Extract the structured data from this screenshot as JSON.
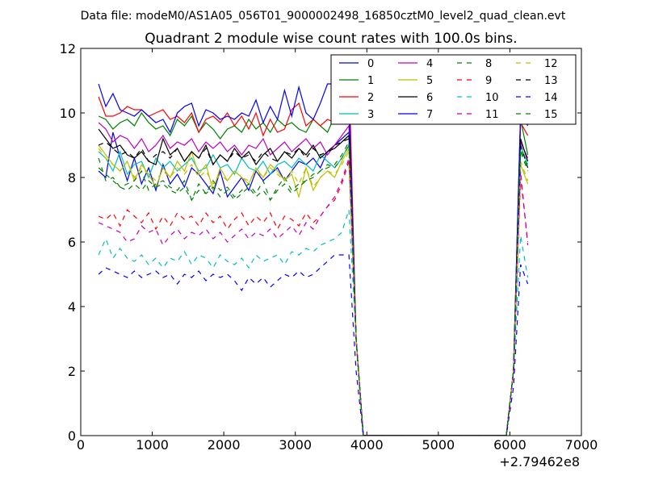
{
  "chart_data": {
    "type": "line",
    "suptitle": "Data file: modeM0/AS1A05_056T01_9000002498_16850cztM0_level2_quad_clean.evt",
    "title": "Quadrant 2 module wise count rates with 100.0s bins.",
    "xlabel": "",
    "ylabel": "",
    "x_offset_label": "+2.79462e8",
    "xlim": [
      0,
      7000
    ],
    "ylim": [
      0,
      12
    ],
    "xticks": [
      0,
      1000,
      2000,
      3000,
      4000,
      5000,
      6000,
      7000
    ],
    "yticks": [
      0,
      2,
      4,
      6,
      8,
      10,
      12
    ],
    "grid": false,
    "legend_position": "top-right",
    "x": [
      250,
      350,
      450,
      550,
      650,
      750,
      850,
      950,
      1050,
      1150,
      1250,
      1350,
      1450,
      1550,
      1650,
      1750,
      1850,
      1950,
      2050,
      2150,
      2250,
      2350,
      2450,
      2550,
      2650,
      2750,
      2850,
      2950,
      3050,
      3150,
      3250,
      3350,
      3450,
      3550,
      3650,
      3750,
      3850,
      3950,
      4050,
      4150,
      4250,
      4350,
      4450,
      4550,
      4650,
      4750,
      4850,
      4950,
      5050,
      5150,
      5250,
      5350,
      5450,
      5550,
      5650,
      5750,
      5850,
      5950,
      6050,
      6150,
      6250
    ],
    "series": [
      {
        "name": "0",
        "color": "#0000ff",
        "dash": "solid",
        "values": [
          8.2,
          8.0,
          9.4,
          8.6,
          7.9,
          8.6,
          7.8,
          8.3,
          7.6,
          8.4,
          7.8,
          8.1,
          7.7,
          8.3,
          8.1,
          7.8,
          7.5,
          8.2,
          7.4,
          7.7,
          8.0,
          7.6,
          8.2,
          7.9,
          8.1,
          8.3,
          7.9,
          8.2,
          8.5,
          8.4,
          8.6,
          8.3,
          8.8,
          9.0,
          9.2,
          9.4,
          3.0,
          0,
          0,
          0,
          0,
          0,
          0,
          0,
          0,
          0,
          0,
          0,
          0,
          0,
          0,
          0,
          0,
          0,
          0,
          0,
          0,
          0,
          2.0,
          10.0,
          9.6
        ]
      },
      {
        "name": "1",
        "color": "#008000",
        "dash": "solid",
        "values": [
          9.9,
          9.8,
          9.5,
          9.7,
          9.8,
          9.6,
          10.0,
          9.7,
          9.5,
          9.6,
          9.3,
          9.8,
          9.6,
          9.9,
          9.4,
          9.7,
          9.5,
          9.2,
          9.5,
          9.6,
          9.4,
          9.8,
          9.5,
          9.7,
          9.4,
          9.8,
          9.6,
          9.7,
          9.5,
          9.4,
          9.8,
          9.6,
          9.4,
          9.9,
          9.7,
          10.1,
          3.0,
          0,
          0,
          0,
          0,
          0,
          0,
          0,
          0,
          0,
          0,
          0,
          0,
          0,
          0,
          0,
          0,
          0,
          0,
          0,
          0,
          0,
          2.0,
          9.8,
          8.7
        ]
      },
      {
        "name": "2",
        "color": "#ff0000",
        "dash": "solid",
        "values": [
          10.5,
          9.9,
          9.9,
          10.0,
          10.2,
          10.1,
          10.1,
          9.9,
          10.0,
          10.1,
          9.8,
          9.9,
          9.7,
          10.0,
          9.4,
          9.8,
          9.9,
          9.7,
          10.0,
          9.6,
          9.9,
          9.5,
          10.0,
          9.3,
          9.8,
          9.4,
          9.5,
          10.1,
          10.3,
          9.6,
          9.8,
          9.6,
          9.8,
          9.7,
          10.2,
          11.4,
          3.0,
          0,
          0,
          0,
          0,
          0,
          0,
          0,
          0,
          0,
          0,
          0,
          0,
          0,
          0,
          0,
          0,
          0,
          0,
          0,
          0,
          0,
          2.0,
          9.7,
          9.3
        ]
      },
      {
        "name": "3",
        "color": "#00bfbf",
        "dash": "solid",
        "values": [
          8.8,
          8.6,
          8.2,
          8.8,
          8.1,
          8.4,
          8.5,
          8.0,
          8.6,
          8.3,
          8.5,
          8.2,
          8.4,
          8.6,
          8.2,
          8.3,
          8.7,
          8.3,
          8.4,
          8.1,
          8.6,
          8.3,
          8.2,
          8.5,
          8.1,
          8.4,
          8.5,
          8.3,
          8.6,
          8.4,
          8.2,
          8.7,
          8.5,
          8.3,
          8.6,
          9.0,
          3.0,
          0,
          0,
          0,
          0,
          0,
          0,
          0,
          0,
          0,
          0,
          0,
          0,
          0,
          0,
          0,
          0,
          0,
          0,
          0,
          0,
          0,
          2.0,
          9.0,
          8.4
        ]
      },
      {
        "name": "4",
        "color": "#bf00bf",
        "dash": "solid",
        "values": [
          9.7,
          9.5,
          9.1,
          9.3,
          9.2,
          8.9,
          9.2,
          8.8,
          9.0,
          9.3,
          8.9,
          9.1,
          9.0,
          9.2,
          8.8,
          9.1,
          8.9,
          9.1,
          8.8,
          9.0,
          8.7,
          9.0,
          8.9,
          9.2,
          8.7,
          8.9,
          9.1,
          8.8,
          9.0,
          9.2,
          8.9,
          9.1,
          8.7,
          9.0,
          9.3,
          9.6,
          3.0,
          0,
          0,
          0,
          0,
          0,
          0,
          0,
          0,
          0,
          0,
          0,
          0,
          0,
          0,
          0,
          0,
          0,
          0,
          0,
          0,
          0,
          2.0,
          9.1,
          8.6
        ]
      },
      {
        "name": "5",
        "color": "#bfbf00",
        "dash": "solid",
        "values": [
          9.0,
          8.7,
          8.4,
          8.2,
          8.5,
          7.9,
          8.4,
          8.1,
          7.7,
          8.3,
          8.0,
          8.5,
          8.2,
          8.8,
          8.1,
          8.4,
          7.6,
          8.3,
          7.9,
          8.2,
          8.0,
          7.8,
          8.3,
          8.0,
          8.4,
          8.2,
          7.9,
          8.1,
          7.4,
          8.3,
          7.6,
          8.0,
          8.2,
          8.0,
          8.5,
          8.9,
          3.0,
          0,
          0,
          0,
          0,
          0,
          0,
          0,
          0,
          0,
          0,
          0,
          0,
          0,
          0,
          0,
          0,
          0,
          0,
          0,
          0,
          0,
          2.0,
          8.4,
          7.8
        ]
      },
      {
        "name": "6",
        "color": "#000000",
        "dash": "solid",
        "values": [
          9.5,
          9.2,
          8.9,
          9.0,
          8.7,
          8.6,
          8.8,
          8.5,
          8.4,
          9.2,
          8.7,
          8.9,
          8.5,
          8.8,
          8.6,
          9.0,
          8.4,
          8.7,
          8.5,
          8.9,
          8.6,
          8.8,
          8.4,
          8.7,
          8.9,
          8.5,
          8.8,
          8.6,
          8.9,
          8.7,
          9.0,
          8.6,
          8.8,
          8.9,
          9.1,
          9.3,
          3.0,
          0,
          0,
          0,
          0,
          0,
          0,
          0,
          0,
          0,
          0,
          0,
          0,
          0,
          0,
          0,
          0,
          0,
          0,
          0,
          0,
          0,
          2.0,
          9.2,
          8.5
        ]
      },
      {
        "name": "7",
        "color": "#0000ff",
        "dash": "solid",
        "values": [
          10.9,
          10.2,
          10.6,
          10.1,
          10.0,
          9.9,
          10.1,
          9.9,
          9.7,
          9.8,
          9.4,
          10.0,
          10.2,
          10.3,
          9.6,
          10.1,
          10.0,
          9.8,
          9.9,
          9.8,
          10.0,
          9.9,
          10.4,
          9.7,
          10.2,
          9.8,
          10.7,
          9.9,
          10.8,
          10.0,
          9.8,
          10.3,
          10.9,
          10.9,
          10.2,
          10.3,
          3.0,
          0,
          0,
          0,
          0,
          0,
          0,
          0,
          0,
          0,
          0,
          0,
          0,
          0,
          0,
          0,
          0,
          0,
          0,
          0,
          0,
          0,
          2.0,
          10.0,
          9.7
        ]
      },
      {
        "name": "8",
        "color": "#008000",
        "dash": "dashed",
        "values": [
          8.6,
          7.9,
          8.0,
          7.7,
          7.8,
          7.9,
          8.2,
          7.6,
          7.8,
          7.9,
          7.7,
          7.6,
          7.9,
          7.3,
          7.8,
          7.5,
          7.9,
          7.6,
          7.7,
          7.4,
          7.6,
          7.8,
          7.5,
          7.9,
          7.3,
          7.7,
          8.0,
          7.6,
          7.8,
          7.9,
          8.1,
          8.2,
          8.4,
          8.3,
          8.6,
          9.0,
          3.0,
          0,
          0,
          0,
          0,
          0,
          0,
          0,
          0,
          0,
          0,
          0,
          0,
          0,
          0,
          0,
          0,
          0,
          0,
          0,
          0,
          0,
          2.0,
          8.8,
          8.2
        ]
      },
      {
        "name": "9",
        "color": "#ff0000",
        "dash": "dashed",
        "values": [
          6.8,
          6.7,
          6.9,
          6.5,
          7.0,
          6.8,
          6.6,
          6.9,
          6.4,
          6.8,
          6.5,
          6.9,
          6.7,
          6.8,
          6.5,
          6.9,
          6.6,
          6.8,
          6.4,
          6.7,
          6.9,
          6.5,
          6.8,
          6.6,
          6.9,
          6.4,
          6.8,
          6.7,
          6.5,
          6.9,
          6.6,
          6.8,
          7.1,
          7.3,
          7.8,
          8.5,
          3.0,
          0,
          0,
          0,
          0,
          0,
          0,
          0,
          0,
          0,
          0,
          0,
          0,
          0,
          0,
          0,
          0,
          0,
          0,
          0,
          0,
          0,
          2.0,
          8.0,
          6.0
        ]
      },
      {
        "name": "10",
        "color": "#00bfbf",
        "dash": "dashed",
        "values": [
          5.6,
          6.1,
          5.5,
          5.8,
          5.5,
          5.4,
          5.6,
          5.3,
          5.5,
          5.2,
          5.5,
          5.4,
          5.7,
          5.3,
          5.6,
          5.5,
          5.2,
          5.6,
          5.4,
          5.3,
          5.5,
          5.2,
          5.6,
          5.4,
          5.5,
          5.6,
          5.3,
          5.7,
          5.6,
          5.8,
          5.7,
          5.9,
          6.0,
          6.1,
          6.3,
          7.0,
          3.0,
          0,
          0,
          0,
          0,
          0,
          0,
          0,
          0,
          0,
          0,
          0,
          0,
          0,
          0,
          0,
          0,
          0,
          0,
          0,
          0,
          0,
          2.0,
          6.2,
          4.9
        ]
      },
      {
        "name": "11",
        "color": "#bf00bf",
        "dash": "dashed",
        "values": [
          6.6,
          6.5,
          6.4,
          6.3,
          6.0,
          6.1,
          6.5,
          6.3,
          6.4,
          5.9,
          6.2,
          6.4,
          6.1,
          6.3,
          6.2,
          6.4,
          6.1,
          6.3,
          6.0,
          6.2,
          6.4,
          6.1,
          6.3,
          6.2,
          6.4,
          6.1,
          6.3,
          6.5,
          6.2,
          6.6,
          6.4,
          6.8,
          7.1,
          7.4,
          7.9,
          8.6,
          3.0,
          0,
          0,
          0,
          0,
          0,
          0,
          0,
          0,
          0,
          0,
          0,
          0,
          0,
          0,
          0,
          0,
          0,
          0,
          0,
          0,
          0,
          2.0,
          8.2,
          5.9
        ]
      },
      {
        "name": "12",
        "color": "#bfbf00",
        "dash": "dashed",
        "values": [
          8.9,
          8.6,
          8.4,
          8.2,
          8.5,
          8.0,
          8.3,
          8.1,
          7.9,
          8.2,
          8.0,
          8.3,
          8.1,
          8.4,
          8.0,
          8.2,
          7.8,
          8.1,
          7.9,
          8.2,
          8.0,
          7.9,
          8.2,
          8.0,
          8.3,
          8.1,
          7.9,
          8.2,
          7.8,
          8.3,
          7.7,
          8.0,
          8.2,
          8.1,
          8.4,
          8.8,
          3.0,
          0,
          0,
          0,
          0,
          0,
          0,
          0,
          0,
          0,
          0,
          0,
          0,
          0,
          0,
          0,
          0,
          0,
          0,
          0,
          0,
          0,
          2.0,
          8.5,
          7.9
        ]
      },
      {
        "name": "13",
        "color": "#000000",
        "dash": "dashed",
        "values": [
          9.0,
          9.1,
          8.9,
          8.7,
          8.8,
          8.6,
          8.9,
          8.5,
          8.7,
          8.8,
          8.6,
          8.9,
          8.5,
          8.8,
          8.6,
          8.9,
          8.4,
          8.7,
          8.5,
          8.8,
          8.6,
          8.7,
          8.5,
          8.8,
          8.6,
          8.5,
          8.8,
          8.7,
          8.9,
          8.6,
          8.9,
          8.7,
          8.8,
          9.0,
          9.1,
          9.2,
          3.0,
          0,
          0,
          0,
          0,
          0,
          0,
          0,
          0,
          0,
          0,
          0,
          0,
          0,
          0,
          0,
          0,
          0,
          0,
          0,
          0,
          0,
          2.0,
          9.0,
          8.3
        ]
      },
      {
        "name": "14",
        "color": "#0000ff",
        "dash": "dashed",
        "values": [
          5.0,
          5.2,
          5.1,
          5.0,
          4.9,
          5.1,
          4.9,
          5.0,
          5.1,
          4.9,
          5.0,
          4.7,
          5.0,
          4.9,
          5.1,
          4.8,
          5.0,
          4.9,
          5.0,
          4.8,
          4.5,
          4.9,
          4.7,
          4.9,
          4.6,
          4.8,
          5.0,
          4.9,
          5.1,
          4.9,
          5.0,
          5.2,
          5.4,
          5.6,
          5.6,
          5.6,
          2.0,
          0,
          0,
          0,
          0,
          0,
          0,
          0,
          0,
          0,
          0,
          0,
          0,
          0,
          0,
          0,
          0,
          0,
          0,
          0,
          0,
          0,
          1.5,
          5.3,
          4.7
        ]
      },
      {
        "name": "15",
        "color": "#008000",
        "dash": "dashed",
        "values": [
          8.3,
          8.1,
          7.9,
          7.7,
          7.6,
          7.8,
          7.6,
          7.9,
          7.7,
          7.8,
          7.6,
          7.5,
          7.7,
          7.3,
          7.6,
          7.5,
          7.7,
          7.4,
          7.6,
          7.3,
          7.5,
          7.7,
          7.4,
          7.6,
          7.3,
          7.6,
          7.8,
          7.5,
          7.7,
          7.9,
          8.0,
          8.2,
          8.3,
          8.4,
          8.7,
          9.1,
          3.0,
          0,
          0,
          0,
          0,
          0,
          0,
          0,
          0,
          0,
          0,
          0,
          0,
          0,
          0,
          0,
          0,
          0,
          0,
          0,
          0,
          0,
          2.0,
          8.9,
          8.3
        ]
      }
    ]
  }
}
